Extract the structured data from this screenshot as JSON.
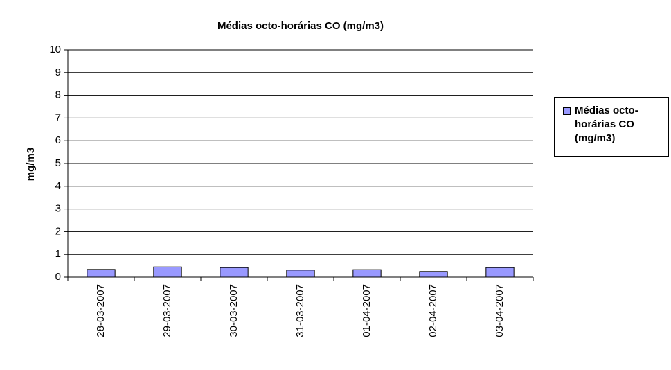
{
  "chart_data": {
    "type": "bar",
    "title": "Médias octo-horárias CO (mg/m3)",
    "y_label": "mg/m3",
    "categories": [
      "28-03-2007",
      "29-03-2007",
      "30-03-2007",
      "31-03-2007",
      "01-04-2007",
      "02-04-2007",
      "03-04-2007"
    ],
    "series": [
      {
        "name": "Médias octo-horárias CO (mg/m3)",
        "color": "#9999ff",
        "values": [
          0.34,
          0.45,
          0.42,
          0.31,
          0.33,
          0.25,
          0.42
        ]
      }
    ],
    "ylim": [
      0,
      10
    ],
    "yticks": [
      0,
      1,
      2,
      3,
      4,
      5,
      6,
      7,
      8,
      9,
      10
    ],
    "grid": true,
    "legend": "right"
  }
}
